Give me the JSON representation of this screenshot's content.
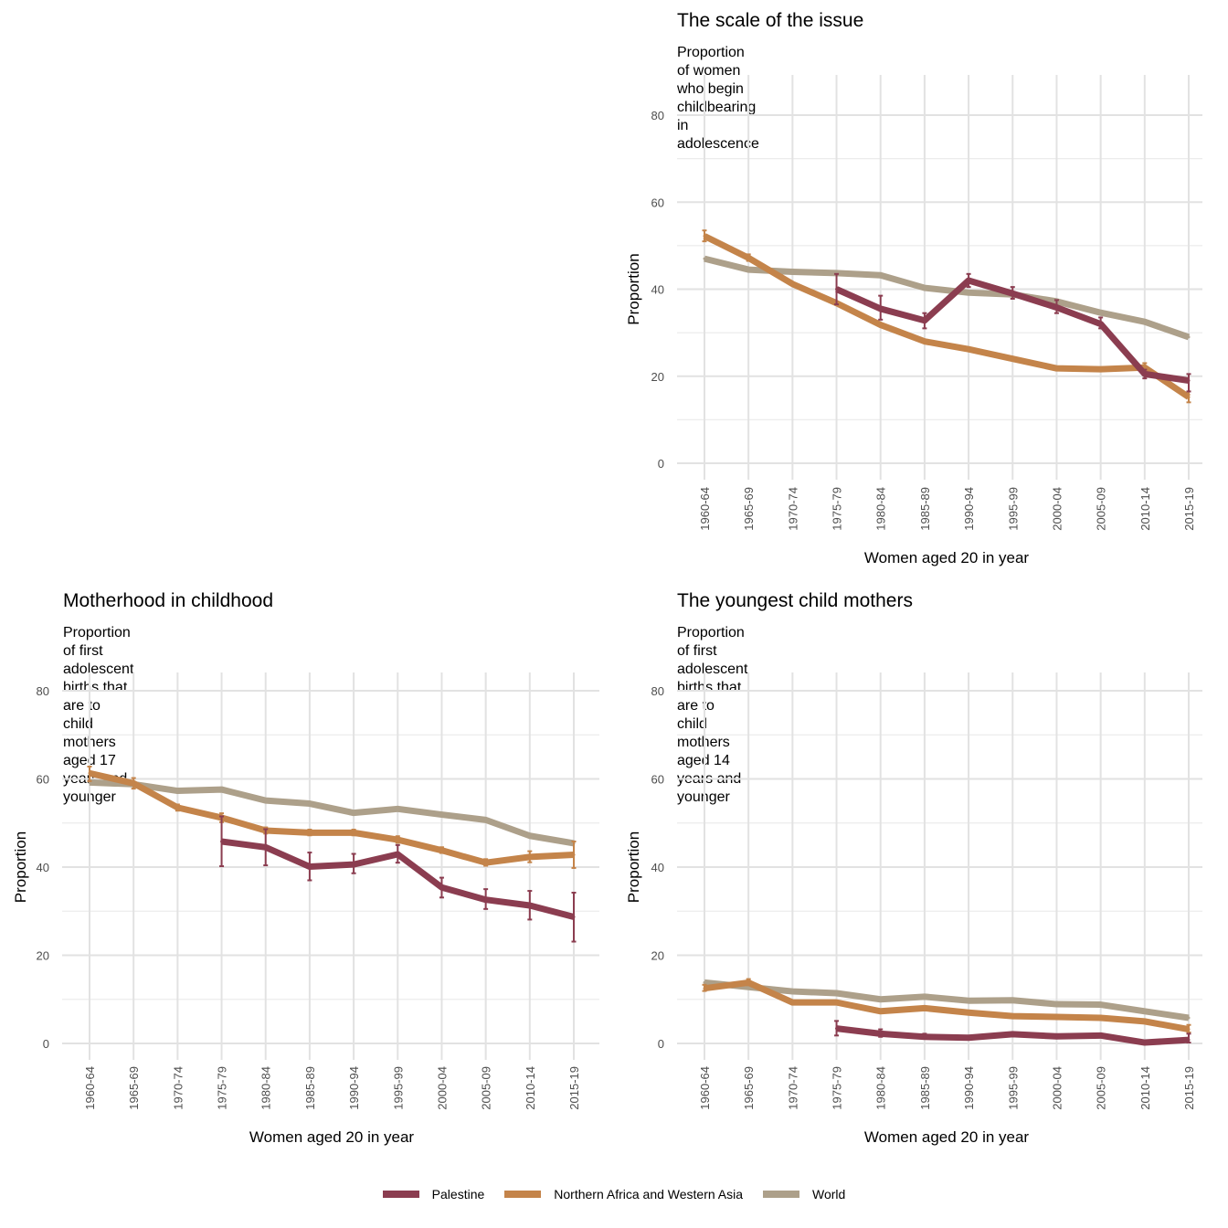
{
  "colors": {
    "Palestine": "#8b3d50",
    "Northern Africa and Western Asia": "#c4844a",
    "World": "#ada08a"
  },
  "legend": {
    "items": [
      "Palestine",
      "Northern Africa and Western Asia",
      "World"
    ]
  },
  "chart_data": [
    {
      "type": "line",
      "title": "The scale of the issue",
      "subtitle": "Proportion of women who begin childbearing in adolescence",
      "xlabel": "Women aged 20 in year",
      "ylabel": "Proportion",
      "ylim": [
        0,
        80
      ],
      "yticks": [
        0,
        20,
        40,
        60,
        80
      ],
      "categories": [
        "1960-64",
        "1965-69",
        "1970-74",
        "1975-79",
        "1980-84",
        "1985-89",
        "1990-94",
        "1995-99",
        "2000-04",
        "2005-09",
        "2010-14",
        "2015-19"
      ],
      "series": [
        {
          "name": "Palestine",
          "values": [
            null,
            null,
            null,
            40,
            35.5,
            32.8,
            42,
            39,
            35.8,
            32,
            20.5,
            19
          ],
          "error_low": [
            null,
            null,
            null,
            36.5,
            33,
            31,
            40.5,
            37.8,
            34.5,
            31,
            19.5,
            16.5
          ],
          "error_high": [
            null,
            null,
            null,
            43.5,
            38.5,
            34.5,
            43.5,
            40.5,
            37.5,
            33.5,
            21.5,
            20.5
          ]
        },
        {
          "name": "Northern Africa and Western Asia",
          "values": [
            52.2,
            47.2,
            41.2,
            36.8,
            31.8,
            28,
            26.2,
            24,
            21.8,
            21.6,
            22,
            15.2
          ],
          "error_low": [
            51,
            46.5,
            null,
            null,
            null,
            null,
            null,
            null,
            null,
            null,
            21,
            14
          ],
          "error_high": [
            53.5,
            48,
            null,
            null,
            null,
            null,
            null,
            null,
            null,
            null,
            23,
            16.5
          ]
        },
        {
          "name": "World",
          "values": [
            47,
            44.5,
            44,
            43.7,
            43.2,
            40.3,
            39.2,
            38.8,
            37.2,
            34.6,
            32.5,
            29
          ]
        }
      ],
      "grid": true
    },
    {
      "type": "line",
      "title": "Motherhood in childhood",
      "subtitle": "Proportion of first adolescent births that are to child mothers\naged 17 years and younger",
      "xlabel": "Women aged 20 in year",
      "ylabel": "Proportion",
      "ylim": [
        0,
        80
      ],
      "yticks": [
        0,
        20,
        40,
        60,
        80
      ],
      "categories": [
        "1960-64",
        "1965-69",
        "1970-74",
        "1975-79",
        "1980-84",
        "1985-89",
        "1990-94",
        "1995-99",
        "2000-04",
        "2005-09",
        "2010-14",
        "2015-19"
      ],
      "series": [
        {
          "name": "Palestine",
          "values": [
            null,
            null,
            null,
            45.8,
            44.5,
            40.1,
            40.6,
            42.9,
            35.4,
            32.6,
            31.3,
            28.7
          ],
          "error_low": [
            null,
            null,
            null,
            40.2,
            40.4,
            37,
            38.6,
            41,
            33.1,
            30.5,
            28.1,
            23.1
          ],
          "error_high": [
            null,
            null,
            null,
            51.5,
            48.6,
            43.3,
            43,
            45,
            37.6,
            35,
            34.6,
            34.2
          ]
        },
        {
          "name": "Northern Africa and Western Asia",
          "values": [
            61.3,
            59,
            53.5,
            51.2,
            48.3,
            47.8,
            47.8,
            46.2,
            43.8,
            41,
            42.3,
            42.8
          ],
          "error_low": [
            59.5,
            57.8,
            52.8,
            50.2,
            47.6,
            47.2,
            47.2,
            45.5,
            43.2,
            40.3,
            41.1,
            39.8
          ],
          "error_high": [
            62.8,
            60.2,
            54.2,
            52.2,
            49,
            48.5,
            48.5,
            47,
            44.5,
            41.8,
            43.6,
            45.8
          ]
        },
        {
          "name": "World",
          "values": [
            59.2,
            58.8,
            57.3,
            57.6,
            55.1,
            54.4,
            52.3,
            53.2,
            51.9,
            50.7,
            47.1,
            45.4
          ]
        }
      ],
      "grid": true
    },
    {
      "type": "line",
      "title": "The youngest child mothers",
      "subtitle": "Proportion of first adolescent births that are to child mothers\naged 14 years and younger",
      "xlabel": "Women aged 20 in year",
      "ylabel": "Proportion",
      "ylim": [
        0,
        80
      ],
      "yticks": [
        0,
        20,
        40,
        60,
        80
      ],
      "categories": [
        "1960-64",
        "1965-69",
        "1970-74",
        "1975-79",
        "1980-84",
        "1985-89",
        "1990-94",
        "1995-99",
        "2000-04",
        "2005-09",
        "2010-14",
        "2015-19"
      ],
      "series": [
        {
          "name": "Palestine",
          "values": [
            null,
            null,
            null,
            3.4,
            2.2,
            1.5,
            1.3,
            2.1,
            1.6,
            1.8,
            0.2,
            0.8
          ],
          "error_low": [
            null,
            null,
            null,
            1.8,
            1.5,
            1.1,
            null,
            null,
            null,
            null,
            null,
            0.2
          ],
          "error_high": [
            null,
            null,
            null,
            5.1,
            3.2,
            2.2,
            null,
            null,
            null,
            null,
            null,
            2.2
          ]
        },
        {
          "name": "Northern Africa and Western Asia",
          "values": [
            12.5,
            13.8,
            9.3,
            9.3,
            7.3,
            8.0,
            7.0,
            6.2,
            6.0,
            5.8,
            5.0,
            3.2
          ],
          "error_low": [
            11.9,
            13.2,
            null,
            null,
            null,
            null,
            null,
            null,
            null,
            null,
            null,
            2.5
          ],
          "error_high": [
            13.3,
            14.6,
            null,
            null,
            null,
            null,
            null,
            null,
            null,
            null,
            null,
            4.2
          ]
        },
        {
          "name": "World",
          "values": [
            13.8,
            12.8,
            11.8,
            11.4,
            10.0,
            10.6,
            9.7,
            9.8,
            8.9,
            8.8,
            7.3,
            5.8
          ]
        }
      ],
      "grid": true
    }
  ]
}
